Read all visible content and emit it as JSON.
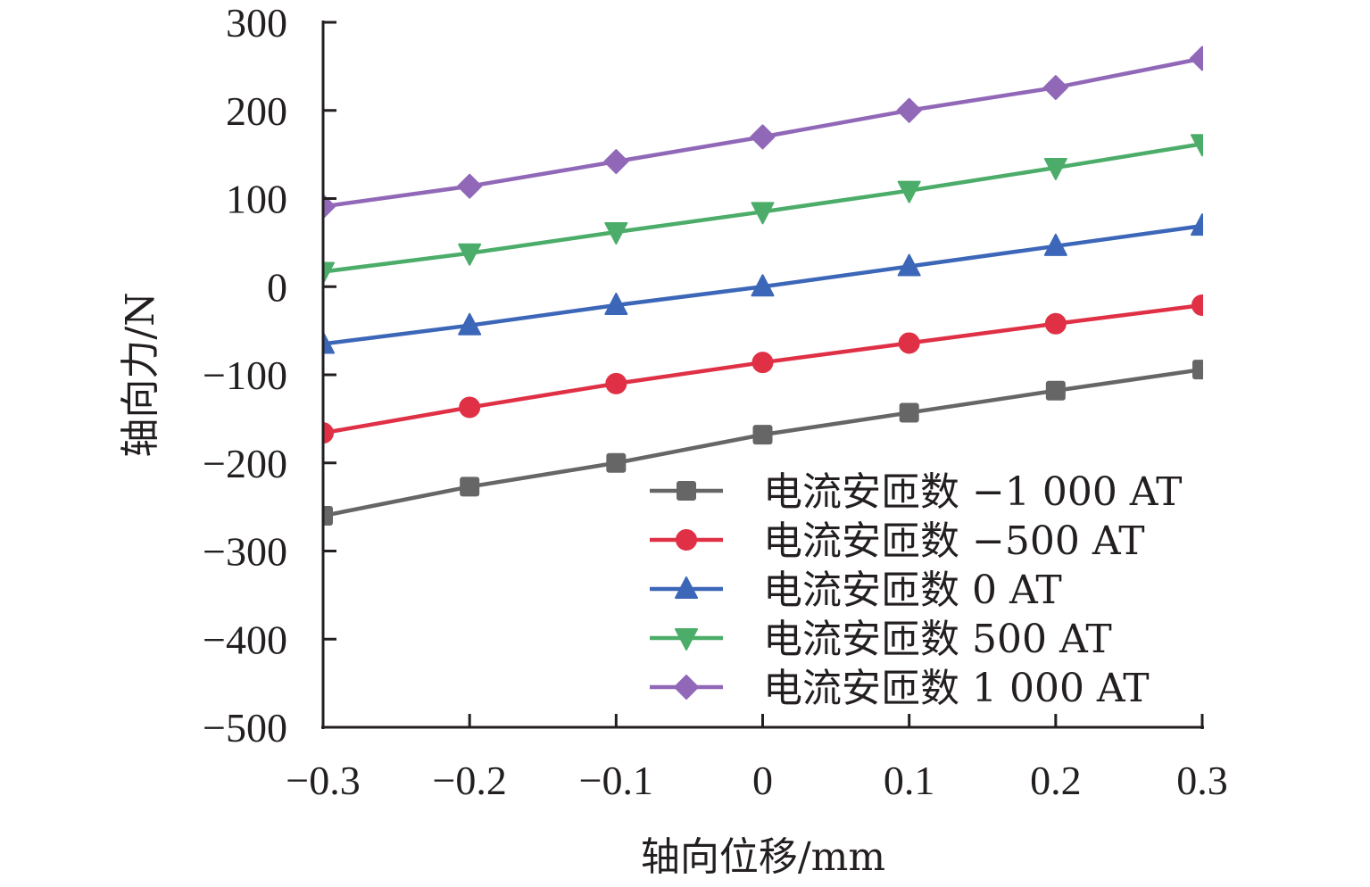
{
  "chart_data": {
    "type": "line",
    "title": "",
    "xlabel": "轴向位移/mm",
    "ylabel": "轴向力/N",
    "xlim": [
      -0.3,
      0.3
    ],
    "ylim": [
      -500,
      300
    ],
    "x": [
      -0.3,
      -0.2,
      -0.1,
      0,
      0.1,
      0.2,
      0.3
    ],
    "x_ticks": [
      -0.3,
      -0.2,
      -0.1,
      0,
      0.1,
      0.2,
      0.3
    ],
    "x_tick_labels": [
      "−0.3",
      "−0.2",
      "−0.1",
      "0",
      "0.1",
      "0.2",
      "0.3"
    ],
    "y_ticks": [
      300,
      200,
      100,
      0,
      -100,
      -200,
      -300,
      -400,
      -500
    ],
    "y_tick_labels": [
      "300",
      "200",
      "100",
      "0",
      "−100",
      "−200",
      "−300",
      "−400",
      "−500"
    ],
    "grid": false,
    "legend_position": "bottom-right",
    "series": [
      {
        "name": "电流安匝数 −1 000 AT",
        "color": "#666666",
        "marker": "square",
        "values": [
          -260,
          -227,
          -200,
          -168,
          -143,
          -118,
          -94
        ]
      },
      {
        "name": "电流安匝数 −500 AT",
        "color": "#e03045",
        "marker": "circle",
        "values": [
          -166,
          -137,
          -110,
          -86,
          -64,
          -42,
          -21
        ]
      },
      {
        "name": "电流安匝数 0 AT",
        "color": "#3c67b8",
        "marker": "triangle-up",
        "values": [
          -65,
          -44,
          -21,
          0,
          23,
          46,
          69
        ]
      },
      {
        "name": "电流安匝数 500 AT",
        "color": "#4bad69",
        "marker": "triangle-down",
        "values": [
          17,
          38,
          62,
          85,
          109,
          135,
          162
        ]
      },
      {
        "name": "电流安匝数 1 000 AT",
        "color": "#9168b8",
        "marker": "diamond",
        "values": [
          91,
          114,
          142,
          170,
          200,
          226,
          259
        ]
      }
    ]
  }
}
